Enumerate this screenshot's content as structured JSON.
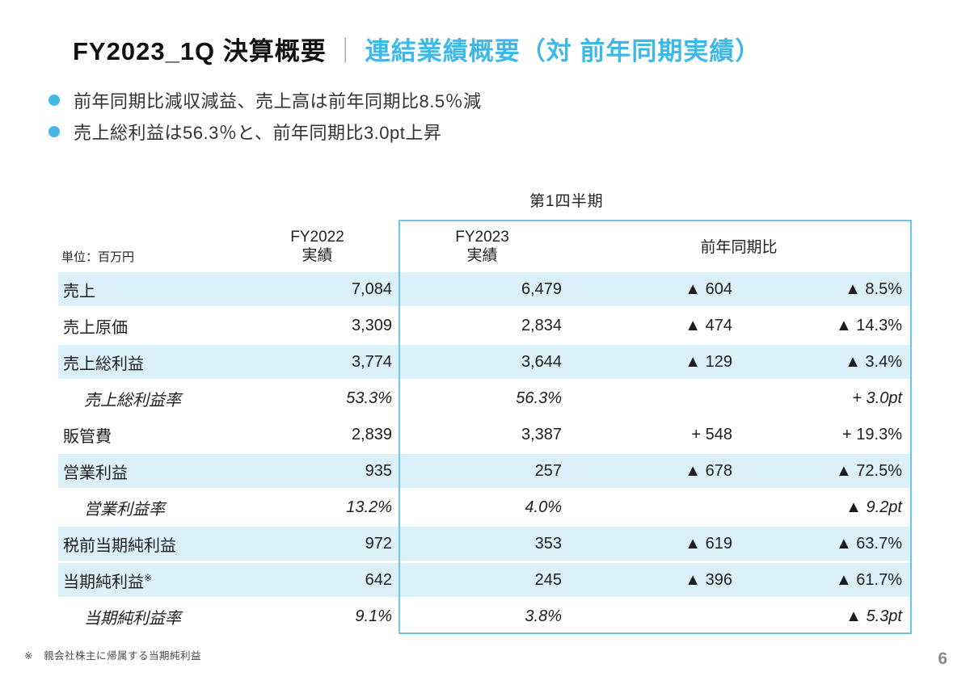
{
  "title": {
    "black": "FY2023_1Q 決算概要",
    "separator": "｜",
    "blue": "連結業績概要（対 前年同期実績）",
    "accent_color": "#3eb8e6"
  },
  "bullets": [
    "前年同期比減収減益、売上高は前年同期比8.5％減",
    "売上総利益は56.3％と、前年同期比3.0pt上昇"
  ],
  "table": {
    "caption": "第1四半期",
    "unit_label": "単位：百万円",
    "col_fy2022": {
      "line1": "FY2022",
      "line2": "実績"
    },
    "col_fy2023": {
      "line1": "FY2023",
      "line2": "実績"
    },
    "col_yoy": "前年同期比",
    "row_stripe_color": "#dcf0f9",
    "box_border_color": "#6cc7e8",
    "rows": [
      {
        "label": "売上",
        "fy2022": "7,084",
        "fy2023": "6,479",
        "diff": "▲ 604",
        "pct": "▲ 8.5%"
      },
      {
        "label": "売上原価",
        "fy2022": "3,309",
        "fy2023": "2,834",
        "diff": "▲ 474",
        "pct": "▲ 14.3%"
      },
      {
        "label": "売上総利益",
        "fy2022": "3,774",
        "fy2023": "3,644",
        "diff": "▲ 129",
        "pct": "▲ 3.4%"
      },
      {
        "label": "売上総利益率",
        "fy2022": "53.3%",
        "fy2023": "56.3%",
        "diff": "",
        "pct": "+ 3.0pt"
      },
      {
        "label": "販管費",
        "fy2022": "2,839",
        "fy2023": "3,387",
        "diff": "+ 548",
        "pct": "+ 19.3%"
      },
      {
        "label": "営業利益",
        "fy2022": "935",
        "fy2023": "257",
        "diff": "▲ 678",
        "pct": "▲ 72.5%"
      },
      {
        "label": "営業利益率",
        "fy2022": "13.2%",
        "fy2023": "4.0%",
        "diff": "",
        "pct": "▲ 9.2pt"
      },
      {
        "label": "税前当期純利益",
        "fy2022": "972",
        "fy2023": "353",
        "diff": "▲ 619",
        "pct": "▲ 63.7%"
      },
      {
        "label": "当期純利益",
        "label_sup": "※",
        "fy2022": "642",
        "fy2023": "245",
        "diff": "▲ 396",
        "pct": "▲ 61.7%"
      },
      {
        "label": "当期純利益率",
        "fy2022": "9.1%",
        "fy2023": "3.8%",
        "diff": "",
        "pct": "▲ 5.3pt"
      }
    ]
  },
  "footnote": "※　親会社株主に帰属する当期純利益",
  "page_number": "6"
}
